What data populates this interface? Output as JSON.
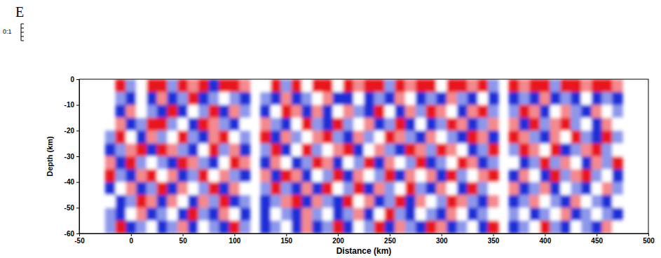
{
  "chart_data": {
    "type": "heatmap",
    "x_label": "Distance (km)",
    "y_label": "Depth (km)",
    "annotations": [
      "E",
      "0:1"
    ],
    "xlim": [
      -50,
      500
    ],
    "ylim": [
      -60,
      0
    ],
    "xticks": [
      -50,
      0,
      50,
      100,
      150,
      200,
      250,
      300,
      350,
      400,
      450,
      500
    ],
    "yticks": [
      0,
      -10,
      -20,
      -30,
      -40,
      -50,
      -60
    ],
    "zlim": [
      -2,
      2
    ],
    "x": [
      -20,
      -10,
      0,
      10,
      20,
      30,
      40,
      50,
      60,
      70,
      80,
      90,
      100,
      110,
      120,
      130,
      140,
      150,
      160,
      170,
      180,
      190,
      200,
      210,
      220,
      230,
      240,
      250,
      260,
      270,
      280,
      290,
      300,
      310,
      320,
      330,
      340,
      350,
      360,
      370,
      380,
      390,
      400,
      410,
      420,
      430,
      440,
      450,
      460,
      470
    ],
    "y": [
      -2.5,
      -7.5,
      -12.5,
      -17.5,
      -22.5,
      -27.5,
      -32.5,
      -37.5,
      -42.5,
      -47.5,
      -52.5,
      -57.5
    ],
    "z": [
      [
        null,
        2,
        -1,
        0,
        2,
        2,
        -1,
        2,
        1,
        2,
        -2,
        2,
        2,
        1,
        null,
        0,
        2,
        -1,
        2,
        0,
        2,
        2,
        0,
        2,
        1,
        2,
        2,
        -1,
        2,
        1,
        2,
        2,
        0,
        2,
        2,
        1,
        2,
        -1,
        null,
        2,
        1,
        2,
        2,
        -1,
        2,
        2,
        1,
        2,
        2,
        1
      ],
      [
        null,
        -1,
        -2,
        0,
        -2,
        1,
        -2,
        -1,
        2,
        -2,
        -1,
        0,
        -1,
        -2,
        null,
        -1,
        -2,
        1,
        -2,
        -1,
        0,
        1,
        -2,
        -2,
        0,
        -2,
        -1,
        -2,
        1,
        0,
        -2,
        -1,
        -2,
        1,
        -1,
        -2,
        0,
        -2,
        null,
        -2,
        -1,
        -2,
        1,
        -2,
        -1,
        -2,
        0,
        -2,
        -1,
        -2
      ],
      [
        null,
        -2,
        1,
        0,
        -1,
        -2,
        2,
        -2,
        0,
        -1,
        2,
        -2,
        1,
        -1,
        null,
        -2,
        0,
        2,
        1,
        -2,
        1,
        -2,
        0,
        1,
        -1,
        -2,
        2,
        0,
        -2,
        1,
        -1,
        2,
        1,
        0,
        -2,
        1,
        2,
        -1,
        null,
        -1,
        2,
        1,
        -2,
        0,
        1,
        -1,
        -2,
        1,
        0,
        -1
      ],
      [
        null,
        1,
        -2,
        -1,
        2,
        2,
        -1,
        0,
        -2,
        2,
        1,
        -1,
        -2,
        0,
        null,
        1,
        -1,
        -2,
        0,
        2,
        -1,
        -2,
        2,
        -1,
        0,
        1,
        -2,
        -1,
        2,
        -2,
        0,
        -2,
        -1,
        2,
        1,
        -2,
        -1,
        1,
        null,
        1,
        -2,
        2,
        -1,
        1,
        2,
        -1,
        0,
        -2,
        1,
        0
      ],
      [
        -1,
        2,
        0,
        -2,
        1,
        -1,
        0,
        2,
        -1,
        -2,
        1,
        2,
        0,
        -1,
        null,
        2,
        -2,
        1,
        -1,
        0,
        1,
        2,
        -1,
        -2,
        1,
        -1,
        0,
        2,
        1,
        -1,
        -2,
        1,
        0,
        -1,
        -2,
        2,
        1,
        -2,
        null,
        2,
        1,
        -1,
        -2,
        1,
        0,
        2,
        -1,
        -2,
        2,
        -1
      ],
      [
        -2,
        -1,
        1,
        2,
        -2,
        2,
        1,
        -1,
        -2,
        0,
        2,
        -1,
        1,
        -2,
        null,
        -1,
        2,
        -2,
        0,
        2,
        -1,
        0,
        1,
        2,
        -2,
        0,
        1,
        -1,
        -2,
        2,
        1,
        -1,
        2,
        1,
        0,
        -2,
        -1,
        2,
        null,
        -1,
        2,
        1,
        0,
        2,
        -2,
        -1,
        1,
        2,
        -1,
        0
      ],
      [
        1,
        -2,
        2,
        -1,
        0,
        -1,
        -2,
        2,
        1,
        -1,
        -2,
        0,
        2,
        1,
        null,
        -2,
        1,
        0,
        -2,
        -1,
        2,
        1,
        -2,
        0,
        -1,
        2,
        -2,
        1,
        0,
        -1,
        2,
        -2,
        -1,
        0,
        2,
        1,
        -2,
        -1,
        null,
        0,
        -2,
        -1,
        2,
        -1,
        1,
        0,
        -2,
        1,
        -1,
        2
      ],
      [
        2,
        -1,
        -2,
        1,
        2,
        0,
        1,
        -2,
        -1,
        2,
        0,
        1,
        -1,
        -2,
        null,
        1,
        -2,
        2,
        1,
        -2,
        0,
        -1,
        2,
        -2,
        1,
        0,
        -1,
        2,
        -2,
        1,
        0,
        1,
        -2,
        2,
        -1,
        0,
        1,
        2,
        null,
        -2,
        1,
        0,
        -2,
        2,
        -1,
        1,
        2,
        -1,
        0,
        -2
      ],
      [
        -2,
        0,
        1,
        -2,
        -1,
        2,
        -2,
        1,
        0,
        -1,
        2,
        -2,
        1,
        0,
        null,
        -1,
        2,
        -1,
        -2,
        1,
        -2,
        2,
        0,
        -1,
        2,
        -2,
        1,
        -1,
        0,
        2,
        -1,
        -2,
        1,
        0,
        -2,
        2,
        -1,
        0,
        null,
        1,
        -2,
        -1,
        1,
        -2,
        0,
        -1,
        -2,
        0,
        1,
        -1
      ],
      [
        0,
        -2,
        -1,
        2,
        1,
        -2,
        1,
        0,
        -2,
        1,
        -1,
        2,
        -2,
        -1,
        null,
        -2,
        -1,
        1,
        2,
        -2,
        1,
        -1,
        -2,
        2,
        0,
        1,
        -2,
        -1,
        2,
        -2,
        1,
        0,
        -1,
        2,
        1,
        -1,
        -2,
        1,
        null,
        -2,
        -1,
        1,
        0,
        -1,
        -2,
        1,
        0,
        -1,
        -2,
        0
      ],
      [
        -1,
        -2,
        0,
        1,
        -2,
        -1,
        0,
        -2,
        2,
        -1,
        -2,
        1,
        0,
        -2,
        null,
        -2,
        0,
        -1,
        -2,
        1,
        -1,
        0,
        -2,
        -1,
        1,
        -2,
        0,
        2,
        -1,
        -2,
        0,
        -1,
        -2,
        1,
        0,
        -2,
        -1,
        0,
        null,
        -1,
        0,
        -2,
        -1,
        0,
        1,
        -2,
        -1,
        0,
        -1,
        -2
      ],
      [
        -1,
        2,
        -2,
        -1,
        0,
        -2,
        -1,
        1,
        -2,
        0,
        -1,
        -2,
        2,
        -1,
        null,
        -2,
        -1,
        0,
        -2,
        1,
        -2,
        -1,
        2,
        -2,
        0,
        -1,
        2,
        -2,
        1,
        -1,
        -2,
        2,
        1,
        -2,
        -1,
        0,
        -2,
        2,
        null,
        -2,
        -1,
        0,
        2,
        -1,
        -2,
        0,
        -1,
        -2,
        1,
        0
      ]
    ]
  }
}
